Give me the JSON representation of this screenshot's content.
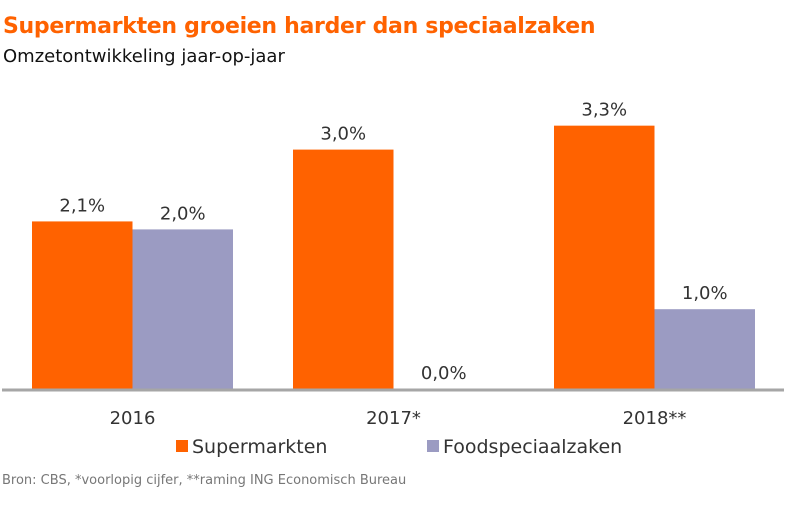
{
  "header": {
    "title": "Supermarkten groeien harder dan speciaalzaken",
    "subtitle": "Omzetontwikkeling  jaar-op-jaar"
  },
  "footer": {
    "source": "Bron: CBS, *voorlopig cijfer, **raming ING Economisch Bureau"
  },
  "colors": {
    "title": "#ff6200",
    "axis": "#a6a6a6"
  },
  "chart_data": {
    "type": "bar",
    "title": "Supermarkten groeien harder dan speciaalzaken",
    "subtitle": "Omzetontwikkeling  jaar-op-jaar",
    "xlabel": "",
    "ylabel": "",
    "categories": [
      "2016",
      "2017*",
      "2018**"
    ],
    "series": [
      {
        "name": "Supermarkten",
        "color": "#ff6200",
        "values": [
          2.1,
          3.0,
          3.3
        ],
        "labels": [
          "2,1%",
          "3,0%",
          "3,3%"
        ]
      },
      {
        "name": "Foodspeciaalzaken",
        "color": "#9b9bc2",
        "values": [
          2.0,
          0.0,
          1.0
        ],
        "labels": [
          "2,0%",
          "0,0%",
          "1,0%"
        ]
      }
    ],
    "ylim": [
      0,
      3.3
    ],
    "grid": false,
    "y_axis_visible": false,
    "legend": "bottom-center"
  }
}
